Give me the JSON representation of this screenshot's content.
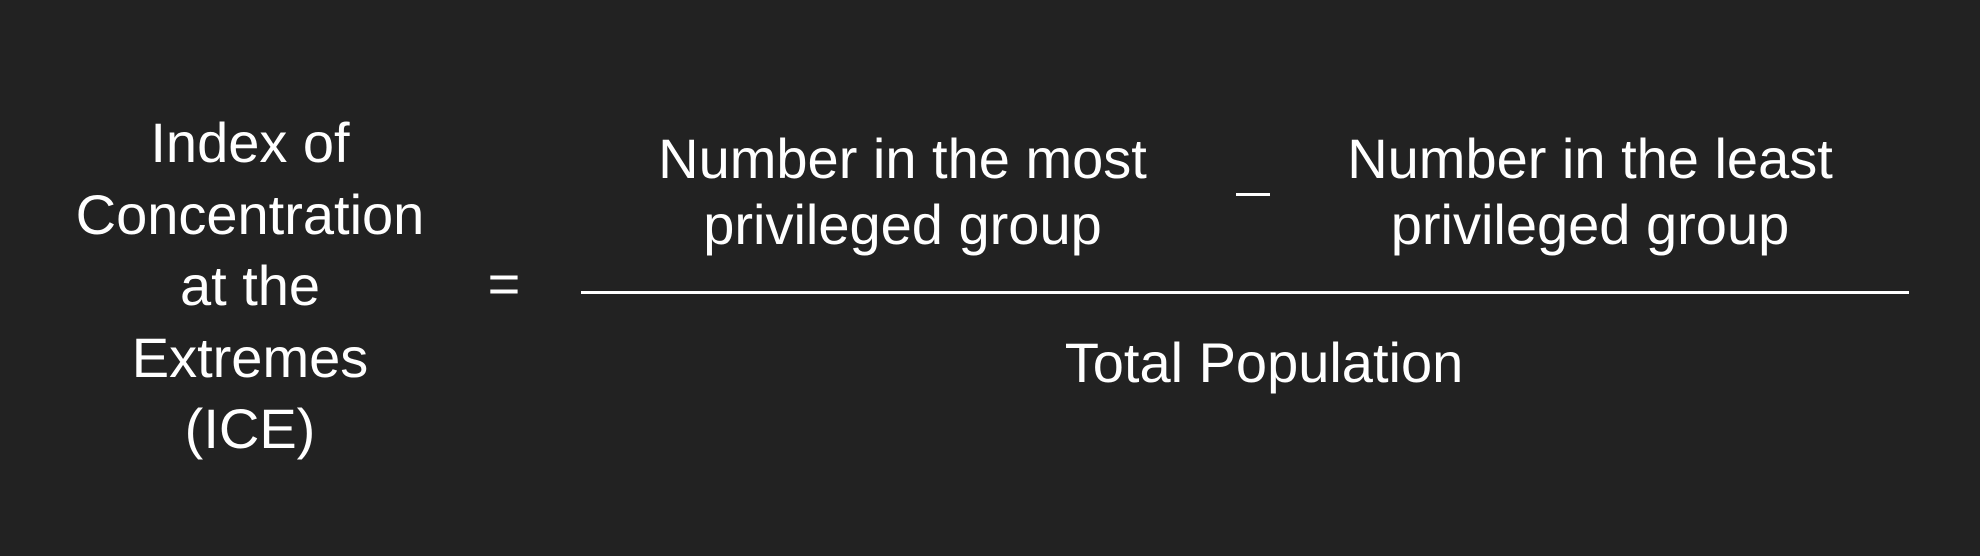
{
  "formula": {
    "lhs_lines": [
      "Index of",
      "Concentration",
      "at the",
      "Extremes",
      "(ICE)"
    ],
    "equals_sign": "=",
    "numerator": {
      "term_most": [
        "Number in the most",
        "privileged group"
      ],
      "operator": "–",
      "term_least": [
        "Number in the least",
        "privileged group"
      ]
    },
    "denominator": "Total Population"
  }
}
